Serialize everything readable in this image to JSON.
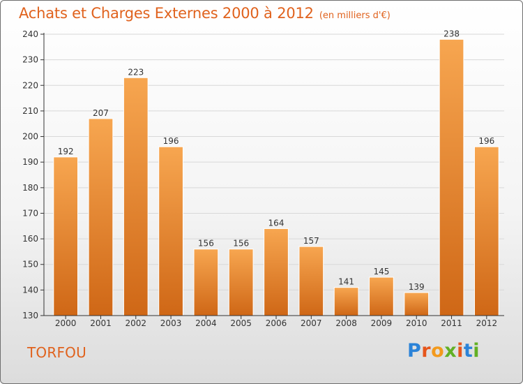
{
  "header": {
    "title": "Achats et Charges Externes 2000 à 2012",
    "subtitle": "(en milliers d'€)"
  },
  "footer": {
    "place": "TORFOU",
    "logo": {
      "text": "Proxiti",
      "letters": [
        "P",
        "r",
        "o",
        "x",
        "i",
        "t",
        "i"
      ],
      "colors": [
        "#2b83d8",
        "#e6561c",
        "#f39a1d",
        "#62b025",
        "#e6561c",
        "#2b83d8",
        "#62b025"
      ]
    }
  },
  "colors": {
    "accent": "#e0621d",
    "bar_top": "#f7a650",
    "bar_bottom": "#cf6716",
    "axis": "#333333",
    "grid": "#d8d8d8"
  },
  "chart_data": {
    "type": "bar",
    "title": "Achats et Charges Externes 2000 à 2012",
    "subtitle": "(en milliers d'€)",
    "categories": [
      "2000",
      "2001",
      "2002",
      "2003",
      "2004",
      "2005",
      "2006",
      "2007",
      "2008",
      "2009",
      "2010",
      "2011",
      "2012"
    ],
    "values": [
      192,
      207,
      223,
      196,
      156,
      156,
      164,
      157,
      141,
      145,
      139,
      238,
      196
    ],
    "ylim": [
      130,
      240
    ],
    "yticks": [
      130,
      140,
      150,
      160,
      170,
      180,
      190,
      200,
      210,
      220,
      230,
      240
    ],
    "xlabel": "",
    "ylabel": "",
    "grid": true,
    "data_labels": true
  }
}
